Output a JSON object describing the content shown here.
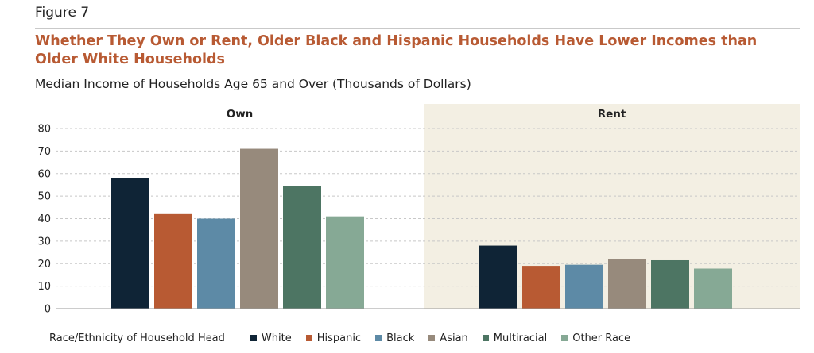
{
  "figure_label": "Figure 7",
  "colors": {
    "title": "#b85a33",
    "rent_panel_bg": "#f3efe3",
    "grid": "#c8c8c8"
  },
  "chart_data": {
    "type": "bar",
    "title": "Whether They Own or Rent, Older Black and Hispanic Households Have Lower Incomes than Older White Households",
    "subtitle": "Median Income of Households Age 65 and Over (Thousands of Dollars)",
    "ylim": [
      0,
      80
    ],
    "yticks": [
      0,
      10,
      20,
      30,
      40,
      50,
      60,
      70,
      80
    ],
    "grid": true,
    "legend_title": "Race/Ethnicity of Household Head",
    "legend_position": "bottom",
    "groups": [
      {
        "label": "Own",
        "values": [
          58,
          42,
          40,
          71,
          54.5,
          41
        ]
      },
      {
        "label": "Rent",
        "values": [
          28,
          19,
          19.5,
          22,
          21.5,
          17.8
        ]
      }
    ],
    "series": [
      {
        "name": "White",
        "color": "#0f2436"
      },
      {
        "name": "Hispanic",
        "color": "#b85a33"
      },
      {
        "name": "Black",
        "color": "#5d8aa6"
      },
      {
        "name": "Asian",
        "color": "#978a7c"
      },
      {
        "name": "Multiracial",
        "color": "#4d7563"
      },
      {
        "name": "Other Race",
        "color": "#86a995"
      }
    ]
  }
}
